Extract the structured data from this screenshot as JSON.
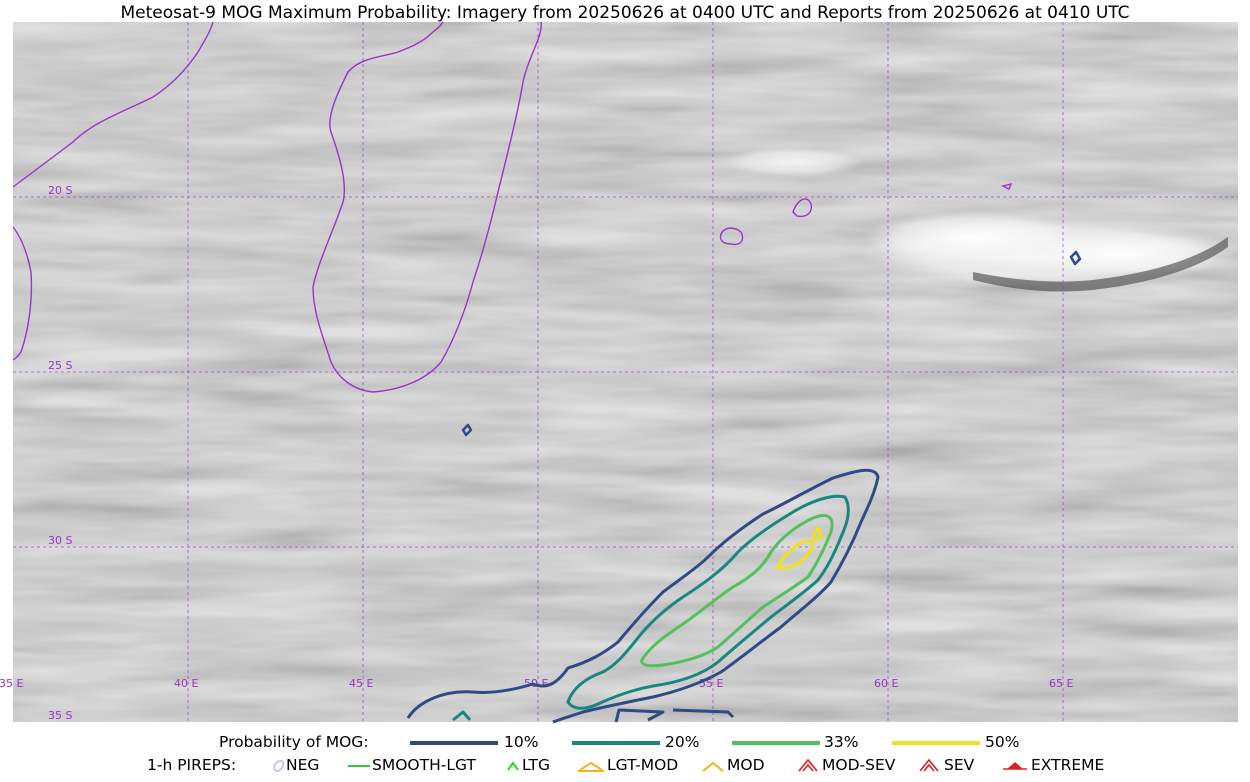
{
  "title": "Meteosat-9 MOG Maximum Probability: Imagery from 20250626 at 0400 UTC and Reports from 20250626 at 0410 UTC",
  "map": {
    "lon_range": [
      35,
      70
    ],
    "lat_range": [
      -35,
      -15
    ],
    "lon_labels": [
      "35 E",
      "40 E",
      "45 E",
      "50 E",
      "55 E",
      "60 E",
      "65 E"
    ],
    "lat_labels": [
      "20 S",
      "25 S",
      "30 S",
      "35 S"
    ],
    "gridline_color": "#9933cc",
    "coastline_color": "#9933cc",
    "background": "grayscale satellite imagery"
  },
  "legend_mog": {
    "label": "Probability of MOG:",
    "items": [
      {
        "label": "10%",
        "color": "#2e4a87"
      },
      {
        "label": "20%",
        "color": "#17877f"
      },
      {
        "label": "33%",
        "color": "#52c15a"
      },
      {
        "label": "50%",
        "color": "#f2e01b"
      }
    ]
  },
  "legend_pireps": {
    "label": "1-h PIREPS:",
    "items": [
      {
        "label": "NEG",
        "color": "#c9c7f2",
        "icon": "neg-icon"
      },
      {
        "label": "SMOOTH-LGT",
        "color": "#33cc33",
        "icon": "smooth-lgt-icon"
      },
      {
        "label": "LTG",
        "color": "#22dd22",
        "icon": "ltg-icon"
      },
      {
        "label": "LGT-MOD",
        "color": "#f0b418",
        "icon": "lgt-mod-icon"
      },
      {
        "label": "MOD",
        "color": "#f0b418",
        "icon": "mod-icon"
      },
      {
        "label": "MOD-SEV",
        "color": "#e02020",
        "icon": "mod-sev-icon"
      },
      {
        "label": "SEV",
        "color": "#e02020",
        "icon": "sev-icon"
      },
      {
        "label": "EXTREME",
        "color": "#e02020",
        "icon": "extreme-icon"
      }
    ]
  }
}
